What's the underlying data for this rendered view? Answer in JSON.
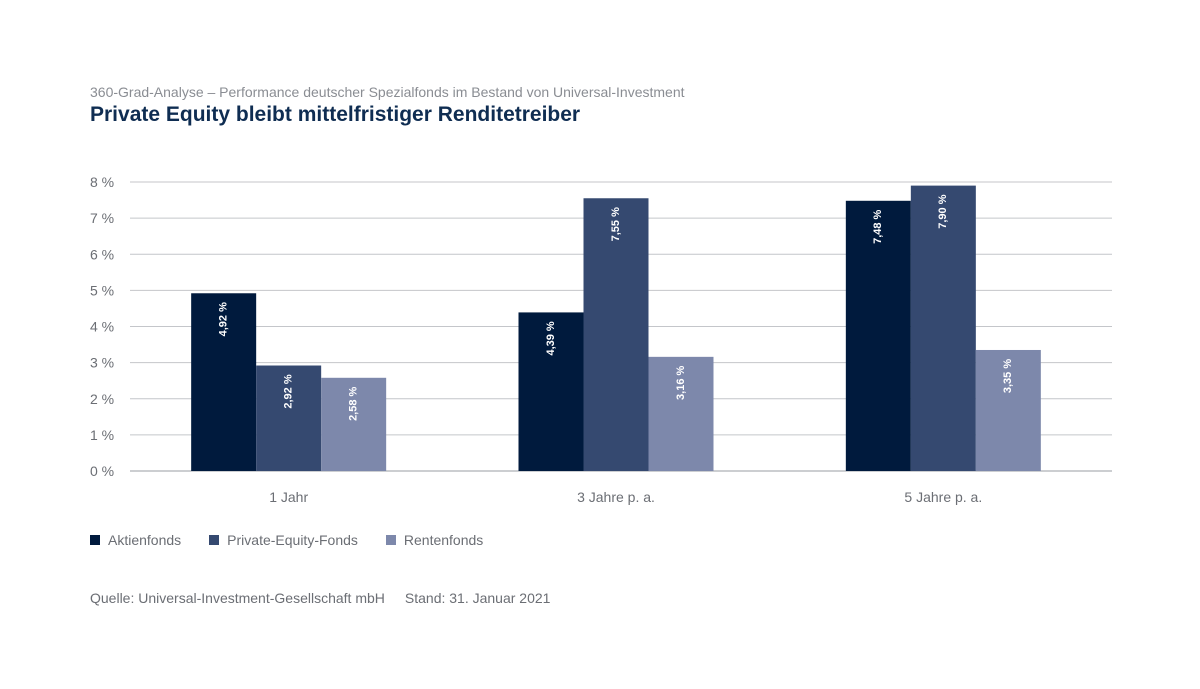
{
  "header": {
    "subtitle": "360-Grad-Analyse – Performance deutscher Spezialfonds im Bestand von Universal-Investment",
    "title": "Private Equity bleibt mittelfristiger Renditetreiber"
  },
  "chart_data": {
    "type": "bar",
    "categories": [
      "1 Jahr",
      "3 Jahre p. a.",
      "5 Jahre p. a."
    ],
    "series": [
      {
        "name": "Aktienfonds",
        "values": [
          4.92,
          4.39,
          7.48
        ],
        "labels": [
          "4,92 %",
          "4,39 %",
          "7,48 %"
        ],
        "color": "#001a3d"
      },
      {
        "name": "Private-Equity-Fonds",
        "values": [
          2.92,
          7.55,
          7.9
        ],
        "labels": [
          "2,92 %",
          "7,55 %",
          "7,90 %"
        ],
        "color": "#354970"
      },
      {
        "name": "Rentenfonds",
        "values": [
          2.58,
          3.16,
          3.35
        ],
        "labels": [
          "2,58 %",
          "3,16 %",
          "3,35 %"
        ],
        "color": "#7d88ab"
      }
    ],
    "yticks": [
      0,
      1,
      2,
      3,
      4,
      5,
      6,
      7,
      8
    ],
    "ytick_labels": [
      "0 %",
      "1 %",
      "2 %",
      "3 %",
      "4 %",
      "5 %",
      "6 %",
      "7 %",
      "8 %"
    ],
    "ylim": [
      0,
      8
    ],
    "grid": true,
    "legend_position": "bottom-left"
  },
  "footer": {
    "source": "Quelle: Universal-Investment-Gesellschaft mbH",
    "date": "Stand: 31. Januar 2021"
  }
}
